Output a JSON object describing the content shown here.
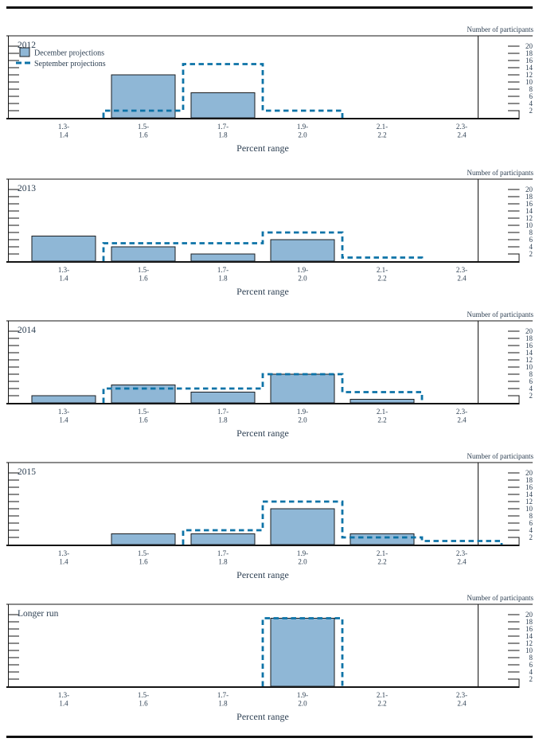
{
  "figure": {
    "right_axis_title": "Number of participants",
    "x_axis_title": "Percent range",
    "x_categories": [
      {
        "line1": "1.3-",
        "line2": "1.4"
      },
      {
        "line1": "1.5-",
        "line2": "1.6"
      },
      {
        "line1": "1.7-",
        "line2": "1.8"
      },
      {
        "line1": "1.9-",
        "line2": "2.0"
      },
      {
        "line1": "2.1-",
        "line2": "2.2"
      },
      {
        "line1": "2.3-",
        "line2": "2.4"
      }
    ],
    "y_ticks": [
      2,
      4,
      6,
      8,
      10,
      12,
      14,
      16,
      18,
      20
    ],
    "legend": {
      "december_label": "December projections",
      "september_label": "September projections"
    },
    "colors": {
      "bar_fill": "#8fb7d6",
      "bar_border": "#1a1d20",
      "dash_line": "#0d73a7",
      "axis": "#141414",
      "text": "#2e4053"
    }
  },
  "chart_data": [
    {
      "type": "bar",
      "title": "2012",
      "categories": [
        "1.3-1.4",
        "1.5-1.6",
        "1.7-1.8",
        "1.9-2.0",
        "2.1-2.2",
        "2.3-2.4"
      ],
      "series": [
        {
          "name": "December projections",
          "style": "solid-bar",
          "values": [
            0,
            12,
            7,
            0,
            0,
            0
          ]
        },
        {
          "name": "September projections",
          "style": "dashed-outline",
          "values": [
            0,
            2,
            15,
            2,
            0,
            0
          ]
        }
      ],
      "xlabel": "Percent range",
      "ylabel": "Number of participants",
      "ylim": [
        0,
        21
      ],
      "legend_position": "top-left",
      "grid": false
    },
    {
      "type": "bar",
      "title": "2013",
      "categories": [
        "1.3-1.4",
        "1.5-1.6",
        "1.7-1.8",
        "1.9-2.0",
        "2.1-2.2",
        "2.3-2.4"
      ],
      "series": [
        {
          "name": "December projections",
          "style": "solid-bar",
          "values": [
            7,
            4,
            2,
            6,
            0,
            0
          ]
        },
        {
          "name": "September projections",
          "style": "dashed-outline",
          "values": [
            0,
            5,
            5,
            8,
            1,
            0
          ]
        }
      ],
      "xlabel": "Percent range",
      "ylabel": "Number of participants",
      "ylim": [
        0,
        21
      ],
      "grid": false
    },
    {
      "type": "bar",
      "title": "2014",
      "categories": [
        "1.3-1.4",
        "1.5-1.6",
        "1.7-1.8",
        "1.9-2.0",
        "2.1-2.2",
        "2.3-2.4"
      ],
      "series": [
        {
          "name": "December projections",
          "style": "solid-bar",
          "values": [
            2,
            5,
            3,
            8,
            1,
            0
          ]
        },
        {
          "name": "September projections",
          "style": "dashed-outline",
          "values": [
            0,
            4,
            4,
            8,
            3,
            0
          ]
        }
      ],
      "xlabel": "Percent range",
      "ylabel": "Number of participants",
      "ylim": [
        0,
        21
      ],
      "grid": false
    },
    {
      "type": "bar",
      "title": "2015",
      "categories": [
        "1.3-1.4",
        "1.5-1.6",
        "1.7-1.8",
        "1.9-2.0",
        "2.1-2.2",
        "2.3-2.4"
      ],
      "series": [
        {
          "name": "December projections",
          "style": "solid-bar",
          "values": [
            0,
            3,
            3,
            10,
            3,
            0
          ]
        },
        {
          "name": "September projections",
          "style": "dashed-outline",
          "values": [
            0,
            0,
            4,
            12,
            2,
            1
          ]
        }
      ],
      "xlabel": "Percent range",
      "ylabel": "Number of participants",
      "ylim": [
        0,
        21
      ],
      "grid": false
    },
    {
      "type": "bar",
      "title": "Longer run",
      "categories": [
        "1.3-1.4",
        "1.5-1.6",
        "1.7-1.8",
        "1.9-2.0",
        "2.1-2.2",
        "2.3-2.4"
      ],
      "series": [
        {
          "name": "December projections",
          "style": "solid-bar",
          "values": [
            0,
            0,
            0,
            19,
            0,
            0
          ]
        },
        {
          "name": "September projections",
          "style": "dashed-outline",
          "values": [
            0,
            0,
            0,
            19,
            0,
            0
          ]
        }
      ],
      "xlabel": "Percent range",
      "ylabel": "Number of participants",
      "ylim": [
        0,
        21
      ],
      "grid": false
    }
  ]
}
